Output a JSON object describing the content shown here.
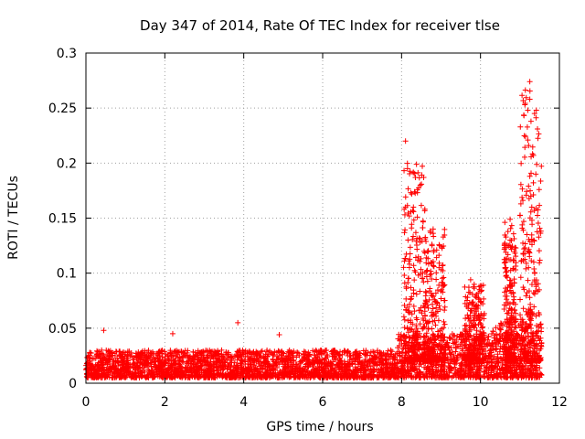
{
  "chart_data": {
    "type": "scatter",
    "title": "Day 347 of 2014, Rate Of TEC Index for receiver tlse",
    "xlabel": "GPS time / hours",
    "ylabel": "ROTI / TECUs",
    "xlim": [
      0,
      12
    ],
    "ylim": [
      0,
      0.3
    ],
    "xticks": [
      "0",
      "2",
      "4",
      "6",
      "8",
      "10",
      "12"
    ],
    "yticks": [
      "0",
      "0.05",
      "0.1",
      "0.15",
      "0.2",
      "0.25",
      "0.3"
    ],
    "grid": true,
    "marker": "+",
    "series_color": "#ff0000",
    "x_data_range": [
      0,
      11.55
    ],
    "baseline_range": [
      0.005,
      0.03
    ],
    "spikes": [
      {
        "x": 0.45,
        "y": 0.048
      },
      {
        "x": 2.2,
        "y": 0.045
      },
      {
        "x": 3.85,
        "y": 0.055
      },
      {
        "x": 4.9,
        "y": 0.044
      },
      {
        "x": 8.1,
        "y": 0.22
      },
      {
        "x": 8.15,
        "y": 0.195
      },
      {
        "x": 8.1,
        "y": 0.16
      },
      {
        "x": 8.1,
        "y": 0.113
      },
      {
        "x": 8.35,
        "y": 0.187
      },
      {
        "x": 8.3,
        "y": 0.16
      },
      {
        "x": 8.8,
        "y": 0.14
      },
      {
        "x": 8.95,
        "y": 0.105
      },
      {
        "x": 9.75,
        "y": 0.094
      },
      {
        "x": 10.0,
        "y": 0.074
      },
      {
        "x": 10.75,
        "y": 0.149
      },
      {
        "x": 10.75,
        "y": 0.13
      },
      {
        "x": 11.15,
        "y": 0.104
      },
      {
        "x": 11.25,
        "y": 0.274
      },
      {
        "x": 11.25,
        "y": 0.258
      },
      {
        "x": 11.28,
        "y": 0.238
      },
      {
        "x": 11.22,
        "y": 0.216
      },
      {
        "x": 11.25,
        "y": 0.188
      },
      {
        "x": 11.3,
        "y": 0.16
      },
      {
        "x": 11.35,
        "y": 0.13
      },
      {
        "x": 11.35,
        "y": 0.11
      },
      {
        "x": 11.4,
        "y": 0.084
      }
    ],
    "clusters": [
      {
        "x_start": 8.05,
        "x_end": 8.6,
        "y_max": 0.2
      },
      {
        "x_start": 8.6,
        "x_end": 9.1,
        "y_max": 0.14
      },
      {
        "x_start": 9.6,
        "x_end": 10.1,
        "y_max": 0.09
      },
      {
        "x_start": 10.6,
        "x_end": 10.9,
        "y_max": 0.15
      },
      {
        "x_start": 11.0,
        "x_end": 11.55,
        "y_max": 0.27
      }
    ]
  }
}
